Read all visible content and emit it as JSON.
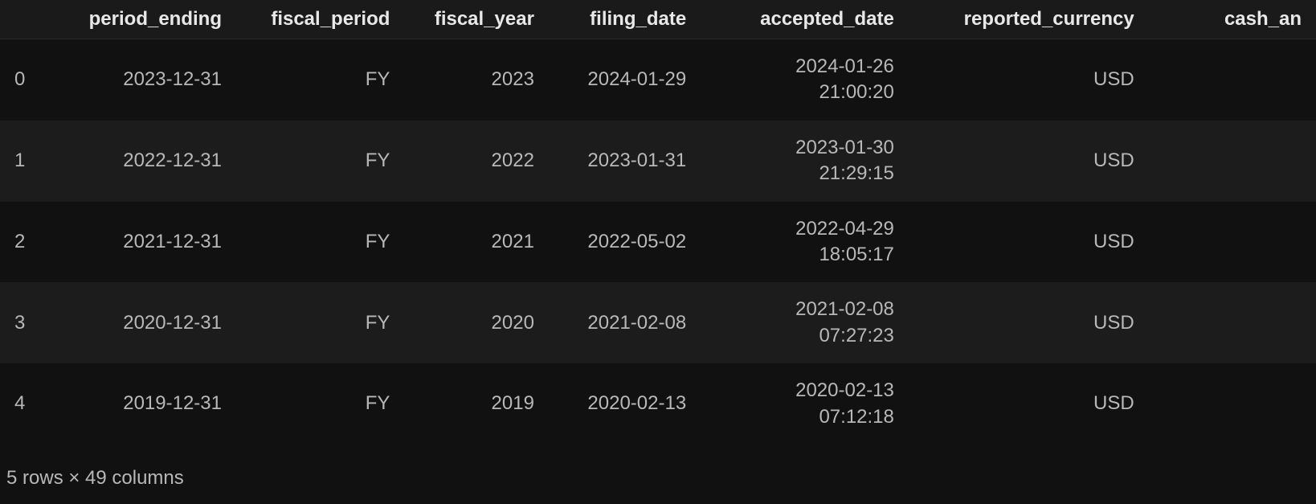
{
  "table": {
    "columns": [
      "period_ending",
      "fiscal_period",
      "fiscal_year",
      "filing_date",
      "accepted_date",
      "reported_currency",
      "cash_an"
    ],
    "rows": [
      {
        "index": "0",
        "period_ending": "2023-12-31",
        "fiscal_period": "FY",
        "fiscal_year": "2023",
        "filing_date": "2024-01-29",
        "accepted_date": "2024-01-26 21:00:20",
        "reported_currency": "USD"
      },
      {
        "index": "1",
        "period_ending": "2022-12-31",
        "fiscal_period": "FY",
        "fiscal_year": "2022",
        "filing_date": "2023-01-31",
        "accepted_date": "2023-01-30 21:29:15",
        "reported_currency": "USD"
      },
      {
        "index": "2",
        "period_ending": "2021-12-31",
        "fiscal_period": "FY",
        "fiscal_year": "2021",
        "filing_date": "2022-05-02",
        "accepted_date": "2022-04-29 18:05:17",
        "reported_currency": "USD"
      },
      {
        "index": "3",
        "period_ending": "2020-12-31",
        "fiscal_period": "FY",
        "fiscal_year": "2020",
        "filing_date": "2021-02-08",
        "accepted_date": "2021-02-08 07:27:23",
        "reported_currency": "USD"
      },
      {
        "index": "4",
        "period_ending": "2019-12-31",
        "fiscal_period": "FY",
        "fiscal_year": "2019",
        "filing_date": "2020-02-13",
        "accepted_date": "2020-02-13 07:12:18",
        "reported_currency": "USD"
      }
    ]
  },
  "footer": "5 rows × 49 columns",
  "colors": {
    "background": "#111111",
    "header_bg": "#1a1a1a",
    "row_odd_bg": "#111111",
    "row_even_bg": "#1c1c1c",
    "header_text": "#e8e8e8",
    "cell_text": "#b8b8b8",
    "border": "#2a2a2a"
  },
  "typography": {
    "header_fontsize": 24,
    "header_fontweight": 700,
    "cell_fontsize": 24,
    "footer_fontsize": 24
  }
}
